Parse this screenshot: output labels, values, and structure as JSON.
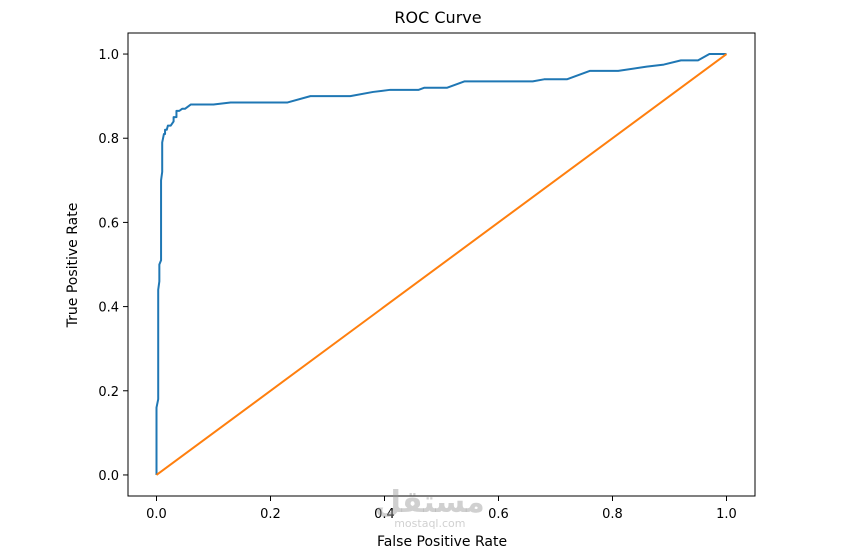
{
  "chart_data": {
    "type": "line",
    "title": "ROC Curve",
    "xlabel": "False Positive Rate",
    "ylabel": "True Positive Rate",
    "xlim": [
      -0.05,
      1.05
    ],
    "ylim": [
      -0.05,
      1.05
    ],
    "xticks": [
      0.0,
      0.2,
      0.4,
      0.6,
      0.8,
      1.0
    ],
    "yticks": [
      0.0,
      0.2,
      0.4,
      0.6,
      0.8,
      1.0
    ],
    "xtick_labels": [
      "0.0",
      "0.2",
      "0.4",
      "0.6",
      "0.8",
      "1.0"
    ],
    "ytick_labels": [
      "0.0",
      "0.2",
      "0.4",
      "0.6",
      "0.8",
      "1.0"
    ],
    "grid": false,
    "series": [
      {
        "color": "#1f77b4",
        "x": [
          0.0,
          0.0,
          0.003,
          0.003,
          0.005,
          0.005,
          0.008,
          0.008,
          0.01,
          0.01,
          0.013,
          0.015,
          0.015,
          0.018,
          0.02,
          0.025,
          0.03,
          0.03,
          0.035,
          0.035,
          0.04,
          0.045,
          0.05,
          0.055,
          0.06,
          0.1,
          0.13,
          0.23,
          0.27,
          0.34,
          0.38,
          0.41,
          0.46,
          0.47,
          0.51,
          0.54,
          0.66,
          0.68,
          0.72,
          0.76,
          0.81,
          0.86,
          0.89,
          0.92,
          0.95,
          0.97,
          0.99,
          1.0
        ],
        "y": [
          0.0,
          0.16,
          0.18,
          0.44,
          0.46,
          0.5,
          0.51,
          0.7,
          0.72,
          0.79,
          0.81,
          0.81,
          0.82,
          0.82,
          0.83,
          0.83,
          0.84,
          0.85,
          0.85,
          0.865,
          0.865,
          0.87,
          0.87,
          0.875,
          0.88,
          0.88,
          0.885,
          0.885,
          0.9,
          0.9,
          0.91,
          0.915,
          0.915,
          0.92,
          0.92,
          0.935,
          0.935,
          0.94,
          0.94,
          0.96,
          0.96,
          0.97,
          0.975,
          0.985,
          0.985,
          1.0,
          1.0,
          1.0
        ]
      },
      {
        "color": "#ff7f0e",
        "x": [
          0.0,
          1.0
        ],
        "y": [
          0.0,
          1.0
        ]
      }
    ]
  },
  "watermark": {
    "main": "مستقل",
    "sub": "mostaql.com"
  }
}
